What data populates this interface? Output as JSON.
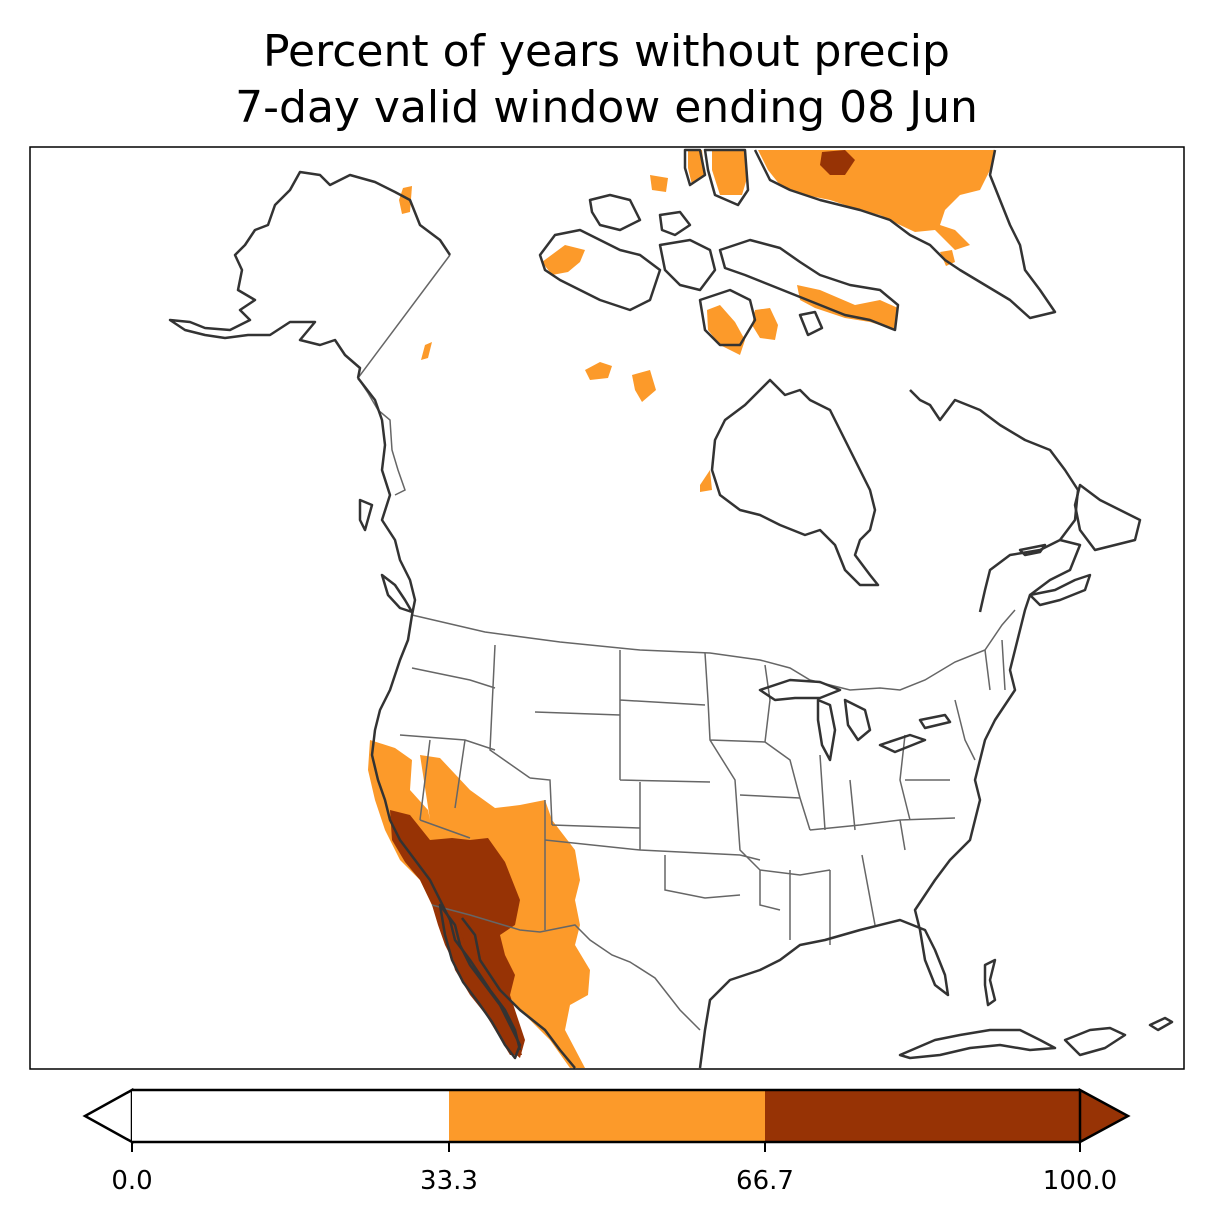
{
  "title": {
    "line1": "Percent of years without precip",
    "line2": "7-day valid window ending 08 Jun"
  },
  "legend": {
    "ticks": [
      "0.0",
      "33.3",
      "66.7",
      "100.0"
    ],
    "bins": [
      {
        "range": [
          0.0,
          33.3
        ],
        "color": "#ffffff"
      },
      {
        "range": [
          33.3,
          66.7
        ],
        "color": "#fc9a2a"
      },
      {
        "range": [
          66.7,
          100.0
        ],
        "color": "#973305"
      }
    ],
    "extend": "both"
  },
  "map": {
    "region": "North America",
    "projection": "lambert-conformal",
    "colors": {
      "coast": "#333333",
      "borders": "#666666",
      "moderate": "#fc9a2a",
      "high": "#973305"
    }
  }
}
